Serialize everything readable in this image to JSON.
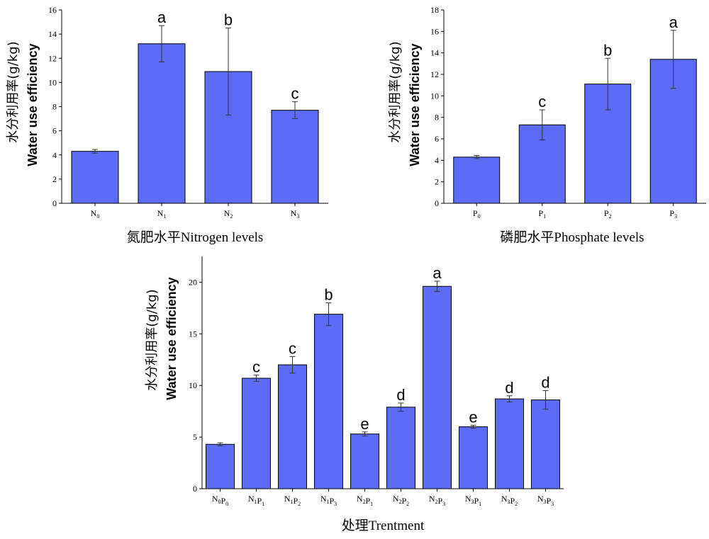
{
  "chart_data": [
    {
      "id": "nitrogen",
      "type": "bar",
      "categories": [
        {
          "base": "N",
          "sub": "0"
        },
        {
          "base": "N",
          "sub": "1"
        },
        {
          "base": "N",
          "sub": "2"
        },
        {
          "base": "N",
          "sub": "3"
        }
      ],
      "values": [
        4.3,
        13.2,
        10.9,
        7.7
      ],
      "errors": [
        0.15,
        1.5,
        3.6,
        0.7
      ],
      "letters": [
        "",
        "a",
        "b",
        "c"
      ],
      "xlabel": "氮肥水平Nitrogen levels",
      "ylabel_cn": "水分利用率(g/kg)",
      "ylabel_en": "Water use efficiency",
      "ylim": [
        0,
        16
      ],
      "yticks": [
        0,
        2,
        4,
        6,
        8,
        10,
        12,
        14,
        16
      ],
      "grid": false
    },
    {
      "id": "phosphate",
      "type": "bar",
      "categories": [
        {
          "base": "P",
          "sub": "0"
        },
        {
          "base": "P",
          "sub": "1"
        },
        {
          "base": "P",
          "sub": "2"
        },
        {
          "base": "P",
          "sub": "3"
        }
      ],
      "values": [
        4.3,
        7.3,
        11.1,
        13.4
      ],
      "errors": [
        0.15,
        1.4,
        2.4,
        2.7
      ],
      "letters": [
        "",
        "c",
        "b",
        "a"
      ],
      "xlabel": "磷肥水平Phosphate levels",
      "ylabel_cn": "水分利用率(g/kg)",
      "ylabel_en": "Water use efficiency",
      "ylim": [
        0,
        18
      ],
      "yticks": [
        0,
        2,
        4,
        6,
        8,
        10,
        12,
        14,
        16,
        18
      ],
      "grid": false
    },
    {
      "id": "treatment",
      "type": "bar",
      "categories": [
        {
          "parts": [
            {
              "base": "N",
              "sub": "0"
            },
            {
              "base": "P",
              "sub": "0"
            }
          ]
        },
        {
          "parts": [
            {
              "base": "N",
              "sub": "1"
            },
            {
              "base": "P",
              "sub": "1"
            }
          ]
        },
        {
          "parts": [
            {
              "base": "N",
              "sub": "1"
            },
            {
              "base": "P",
              "sub": "2"
            }
          ]
        },
        {
          "parts": [
            {
              "base": "N",
              "sub": "1"
            },
            {
              "base": "P",
              "sub": "3"
            }
          ]
        },
        {
          "parts": [
            {
              "base": "N",
              "sub": "2"
            },
            {
              "base": "P",
              "sub": "1"
            }
          ]
        },
        {
          "parts": [
            {
              "base": "N",
              "sub": "2"
            },
            {
              "base": "P",
              "sub": "2"
            }
          ]
        },
        {
          "parts": [
            {
              "base": "N",
              "sub": "2"
            },
            {
              "base": "P",
              "sub": "3"
            }
          ]
        },
        {
          "parts": [
            {
              "base": "N",
              "sub": "3"
            },
            {
              "base": "P",
              "sub": "1"
            }
          ]
        },
        {
          "parts": [
            {
              "base": "N",
              "sub": "3"
            },
            {
              "base": "P",
              "sub": "2"
            }
          ]
        },
        {
          "parts": [
            {
              "base": "N",
              "sub": "3"
            },
            {
              "base": "P",
              "sub": "3"
            }
          ]
        }
      ],
      "values": [
        4.3,
        10.7,
        12.0,
        16.9,
        5.3,
        7.9,
        19.6,
        6.0,
        8.7,
        8.6
      ],
      "errors": [
        0.15,
        0.3,
        0.8,
        1.1,
        0.2,
        0.4,
        0.5,
        0.15,
        0.3,
        0.9
      ],
      "letters": [
        "",
        "c",
        "c",
        "b",
        "e",
        "d",
        "a",
        "e",
        "d",
        "d"
      ],
      "xlabel": "处理Trentment",
      "ylabel_cn": "水分利用率(g/kg)",
      "ylabel_en": "Water use efficiency",
      "ylim": [
        0,
        22.5
      ],
      "yticks": [
        0,
        5,
        10,
        15,
        20
      ],
      "grid": false
    }
  ],
  "colors": {
    "bar_fill": "#5b6cf7",
    "bar_stroke": "#000000",
    "error_bar": "#333333"
  }
}
